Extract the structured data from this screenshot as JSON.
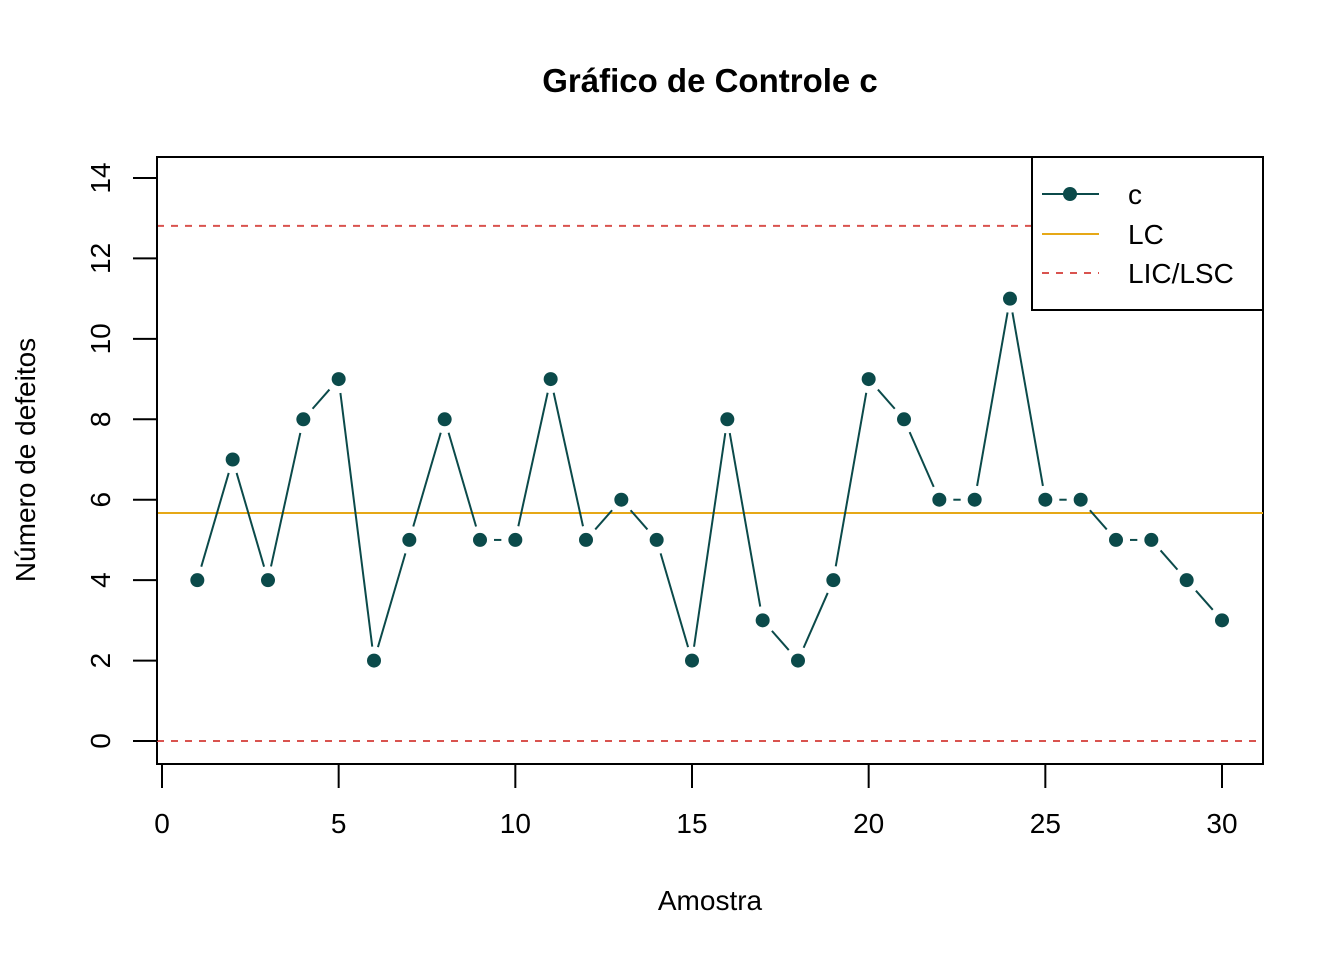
{
  "chart_data": {
    "type": "line",
    "title": "Gráfico de Controle c",
    "xlabel": "Amostra",
    "ylabel": "Número de defeitos",
    "xlim": [
      0,
      30
    ],
    "ylim": [
      0,
      14
    ],
    "x_ticks": [
      "0",
      "5",
      "10",
      "15",
      "20",
      "25",
      "30"
    ],
    "y_ticks": [
      "0",
      "2",
      "4",
      "6",
      "8",
      "10",
      "12",
      "14"
    ],
    "grid": false,
    "legend_position": "top-right",
    "series": [
      {
        "name": "c",
        "style": "points-and-lines",
        "color": "#0B4A4A",
        "x": [
          1,
          2,
          3,
          4,
          5,
          6,
          7,
          8,
          9,
          10,
          11,
          12,
          13,
          14,
          15,
          16,
          17,
          18,
          19,
          20,
          21,
          22,
          23,
          24,
          25,
          26,
          27,
          28,
          29,
          30
        ],
        "values": [
          4,
          7,
          4,
          8,
          9,
          2,
          5,
          8,
          5,
          5,
          9,
          5,
          6,
          5,
          2,
          8,
          3,
          2,
          4,
          9,
          8,
          6,
          6,
          11,
          6,
          6,
          5,
          5,
          4,
          3
        ]
      }
    ],
    "reference_lines": [
      {
        "name": "LC",
        "y": 5.67,
        "color": "#E6A817",
        "style": "solid"
      },
      {
        "name": "LIC/LSC",
        "y": 0,
        "color": "#D9534F",
        "style": "dashed"
      },
      {
        "name": "LIC/LSC",
        "y": 12.81,
        "color": "#D9534F",
        "style": "dashed"
      }
    ],
    "legend": [
      "c",
      "LC",
      "LIC/LSC"
    ]
  }
}
